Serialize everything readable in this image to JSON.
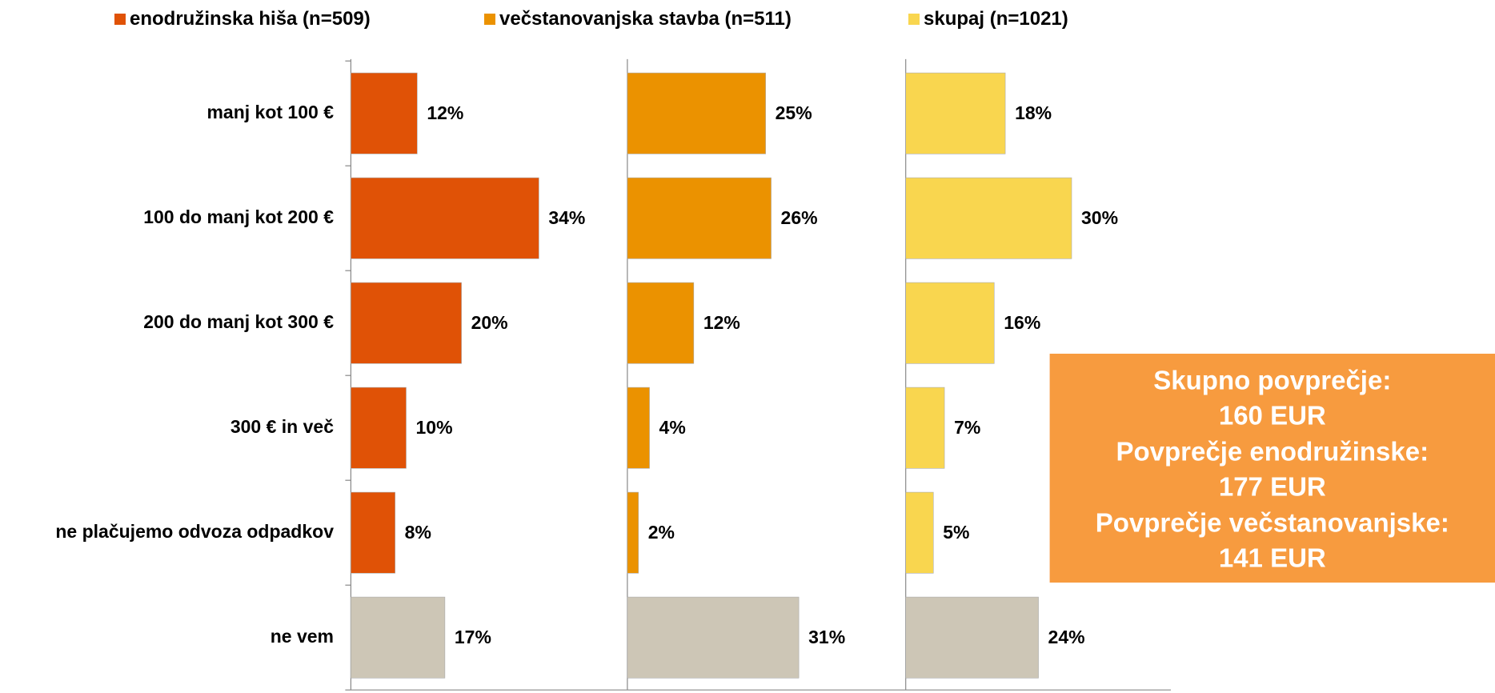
{
  "chart_data": {
    "type": "bar",
    "orientation": "horizontal",
    "categories": [
      "manj kot 100 €",
      "100 do manj kot 200 €",
      "200 do manj kot 300 €",
      "300 € in več",
      "ne plačujemo odvoza odpadkov",
      "ne vem"
    ],
    "series": [
      {
        "name": "enodružinska hiša (n=509)",
        "color": "#E05206",
        "colors": [
          "#E05206",
          "#E05206",
          "#E05206",
          "#E05206",
          "#E05206",
          "#CDC6B6"
        ],
        "values": [
          12,
          34,
          20,
          10,
          8,
          17
        ],
        "value_labels": [
          "12%",
          "34%",
          "20%",
          "10%",
          "8%",
          "17%"
        ]
      },
      {
        "name": "večstanovanjska stavba (n=511)",
        "color": "#EB9200",
        "colors": [
          "#EB9200",
          "#EB9200",
          "#EB9200",
          "#EB9200",
          "#EB9200",
          "#CDC6B6"
        ],
        "values": [
          25,
          26,
          12,
          4,
          2,
          31
        ],
        "value_labels": [
          "25%",
          "26%",
          "12%",
          "4%",
          "2%",
          "31%"
        ]
      },
      {
        "name": "skupaj (n=1021)",
        "color": "#F9D64F",
        "colors": [
          "#F9D64F",
          "#F9D64F",
          "#F9D64F",
          "#F9D64F",
          "#F9D64F",
          "#CDC6B6"
        ],
        "values": [
          18,
          30,
          16,
          7,
          5,
          24
        ],
        "value_labels": [
          "18%",
          "30%",
          "16%",
          "7%",
          "5%",
          "24%"
        ]
      }
    ],
    "legend": "top",
    "annotation": {
      "color": "#F79B3F",
      "lines": [
        "Skupno povprečje:",
        "160 EUR",
        "Povprečje enodružinske:",
        "177 EUR",
        "Povprečje večstanovanjske:",
        "141 EUR"
      ]
    }
  }
}
